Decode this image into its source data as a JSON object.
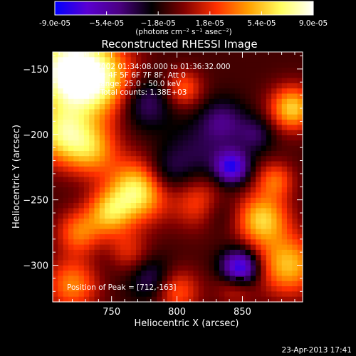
{
  "chart_data": {
    "type": "heatmap",
    "title": "Reconstructed RHESSI Image",
    "xlabel": "Heliocentric X (arcsec)",
    "ylabel": "Heliocentric Y (arcsec)",
    "xlim": [
      705,
      896
    ],
    "ylim": [
      -328,
      -137
    ],
    "x_ticks": [
      750,
      800,
      850
    ],
    "y_ticks": [
      -150,
      -200,
      -250,
      -300
    ],
    "colorbar": {
      "range": [
        -9e-05,
        9e-05
      ],
      "tick_labels": [
        "-9.0e-05",
        "−5.4e-05",
        "−1.8e-05",
        "1.8e-05",
        "5.4e-05",
        "9.0e-05"
      ],
      "tick_values": [
        -9e-05,
        -5.4e-05,
        -1.8e-05,
        1.8e-05,
        5.4e-05,
        9e-05
      ],
      "unit_label": "(photons cm⁻² s⁻¹ asec⁻²)",
      "colormap": [
        "#0000ff",
        "#5a00d2",
        "#4b0082",
        "#000000",
        "#800000",
        "#ff3000",
        "#ffa000",
        "#ffff60",
        "#ffffff"
      ]
    },
    "annotations": [
      "23-Dec-2002 01:34:08.000 to 01:36:32.000",
      "Detectors: 4F 5F 6F 7F 8F, Att 0",
      "Energy Range: 25.0 - 50.0 keV",
      "Clean     Total counts: 1.38E+03"
    ],
    "peak_label": "Position of Peak = [712,-163]",
    "peak_position": [
      712,
      -163
    ],
    "grid": false,
    "blobs": [
      {
        "x": 716,
        "y": -150,
        "v": 1.0,
        "s": 22
      },
      {
        "x": 740,
        "y": -160,
        "v": 0.7,
        "s": 20
      },
      {
        "x": 712,
        "y": -200,
        "v": 0.75,
        "s": 16
      },
      {
        "x": 735,
        "y": -212,
        "v": 0.55,
        "s": 14
      },
      {
        "x": 770,
        "y": -243,
        "v": 0.9,
        "s": 16
      },
      {
        "x": 748,
        "y": -260,
        "v": 0.6,
        "s": 12
      },
      {
        "x": 725,
        "y": -275,
        "v": 0.5,
        "s": 12
      },
      {
        "x": 760,
        "y": -292,
        "v": 0.55,
        "s": 12
      },
      {
        "x": 720,
        "y": -315,
        "v": 0.55,
        "s": 14
      },
      {
        "x": 805,
        "y": -165,
        "v": 0.45,
        "s": 10
      },
      {
        "x": 820,
        "y": -253,
        "v": 0.55,
        "s": 14
      },
      {
        "x": 800,
        "y": -320,
        "v": 0.45,
        "s": 12
      },
      {
        "x": 865,
        "y": -265,
        "v": 0.75,
        "s": 14
      },
      {
        "x": 885,
        "y": -300,
        "v": 0.7,
        "s": 16
      },
      {
        "x": 888,
        "y": -180,
        "v": 0.75,
        "s": 12
      },
      {
        "x": 875,
        "y": -235,
        "v": 0.45,
        "s": 10
      },
      {
        "x": 845,
        "y": -315,
        "v": 0.4,
        "s": 10
      },
      {
        "x": 775,
        "y": -175,
        "v": -0.4,
        "s": 14
      },
      {
        "x": 835,
        "y": -190,
        "v": -0.35,
        "s": 12
      },
      {
        "x": 842,
        "y": -225,
        "v": -0.75,
        "s": 9
      },
      {
        "x": 755,
        "y": -295,
        "v": -0.3,
        "s": 12
      },
      {
        "x": 790,
        "y": -230,
        "v": -0.3,
        "s": 12
      },
      {
        "x": 848,
        "y": -303,
        "v": -0.95,
        "s": 10
      },
      {
        "x": 830,
        "y": -258,
        "v": -0.35,
        "s": 12
      },
      {
        "x": 780,
        "y": -310,
        "v": -0.35,
        "s": 12
      },
      {
        "x": 860,
        "y": -200,
        "v": -0.3,
        "s": 10
      },
      {
        "x": 815,
        "y": -215,
        "v": -0.25,
        "s": 18
      }
    ]
  },
  "footer": {
    "timestamp": "23-Apr-2013 17:41"
  }
}
